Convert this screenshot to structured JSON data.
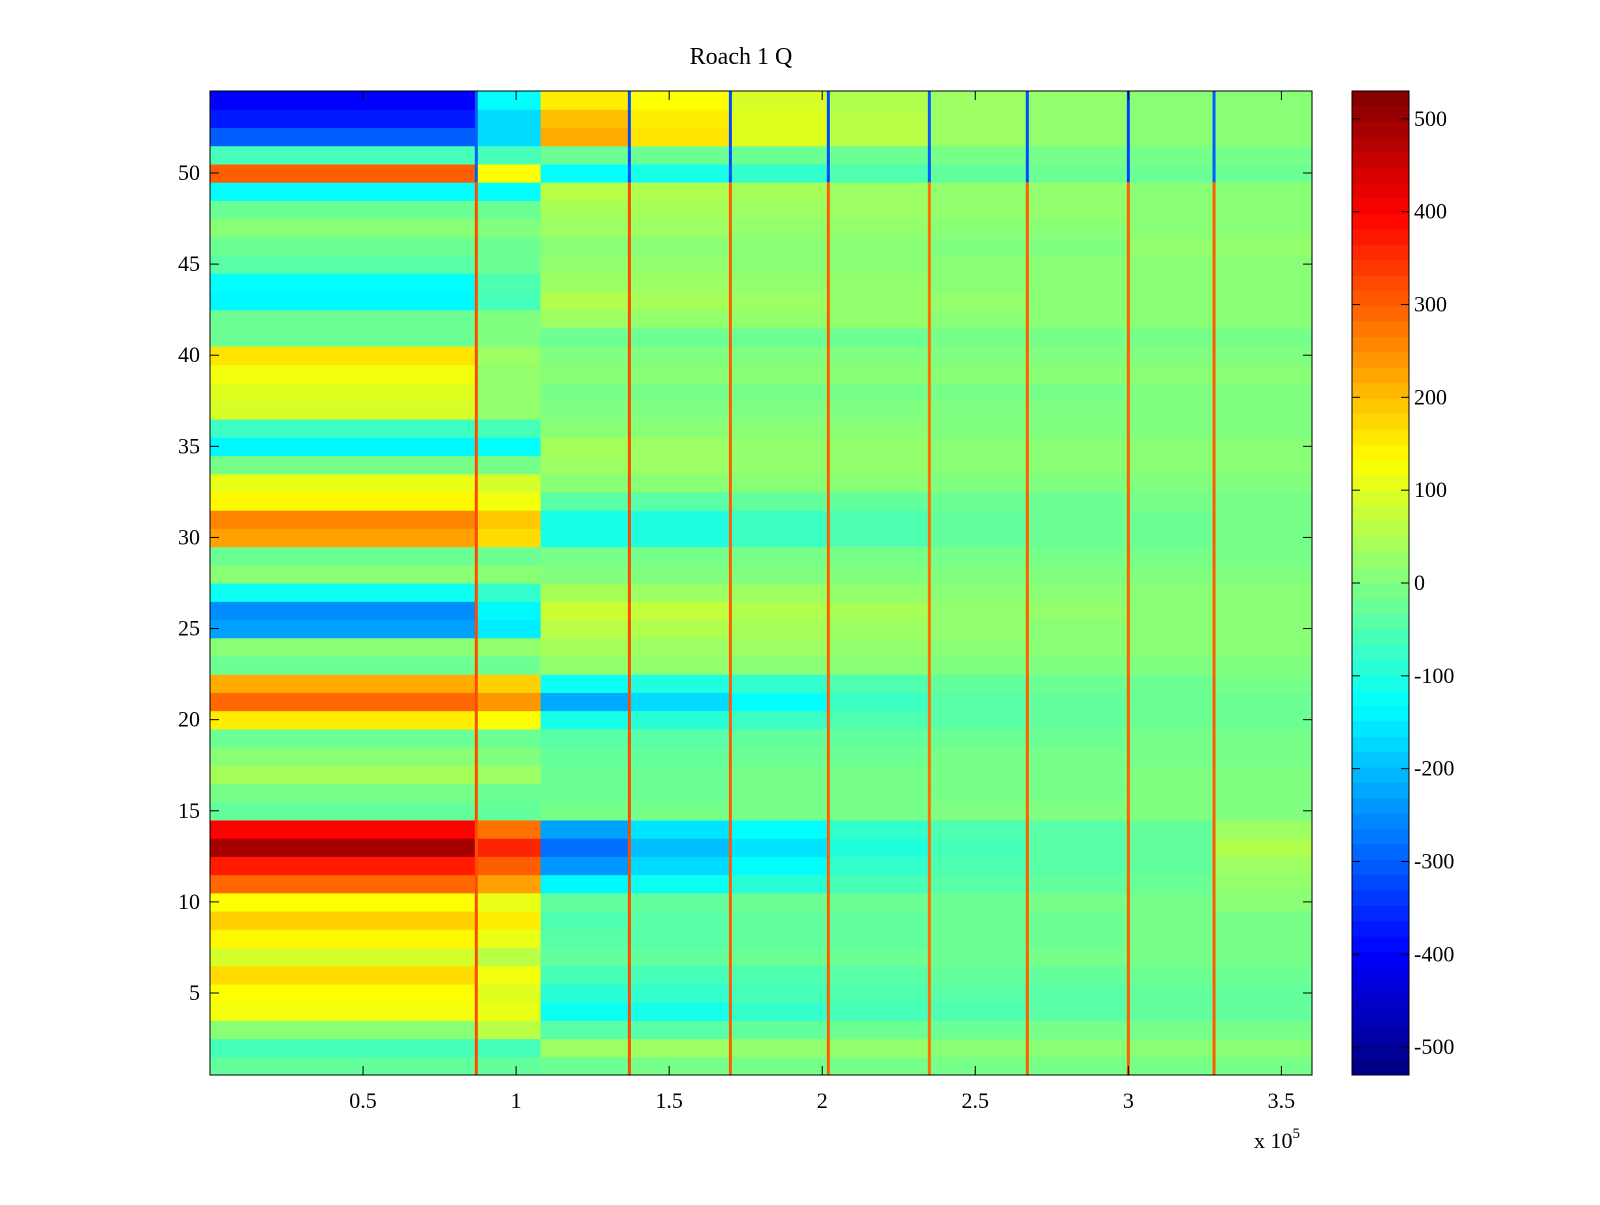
{
  "chart_data": {
    "type": "heatmap",
    "title": "Roach 1 Q",
    "xlabel": "",
    "ylabel": "",
    "x_exponent_label": "x 10",
    "x_exponent_power": "5",
    "xlim": [
      0,
      3.6
    ],
    "ylim": [
      0.5,
      54.5
    ],
    "x_ticks": [
      {
        "value": 0.5,
        "label": "0.5"
      },
      {
        "value": 1,
        "label": "1"
      },
      {
        "value": 1.5,
        "label": "1.5"
      },
      {
        "value": 2,
        "label": "2"
      },
      {
        "value": 2.5,
        "label": "2.5"
      },
      {
        "value": 3,
        "label": "3"
      },
      {
        "value": 3.5,
        "label": "3.5"
      }
    ],
    "y_ticks": [
      {
        "value": 5,
        "label": "5"
      },
      {
        "value": 10,
        "label": "10"
      },
      {
        "value": 15,
        "label": "15"
      },
      {
        "value": 20,
        "label": "20"
      },
      {
        "value": 25,
        "label": "25"
      },
      {
        "value": 30,
        "label": "30"
      },
      {
        "value": 35,
        "label": "35"
      },
      {
        "value": 40,
        "label": "40"
      },
      {
        "value": 45,
        "label": "45"
      },
      {
        "value": 50,
        "label": "50"
      }
    ],
    "colorbar": {
      "colormap": "jet",
      "range": [
        -530,
        530
      ],
      "ticks": [
        {
          "value": 500,
          "label": "500"
        },
        {
          "value": 400,
          "label": "400"
        },
        {
          "value": 300,
          "label": "300"
        },
        {
          "value": 200,
          "label": "200"
        },
        {
          "value": 100,
          "label": "100"
        },
        {
          "value": 0,
          "label": "0"
        },
        {
          "value": -100,
          "label": "-100"
        },
        {
          "value": -200,
          "label": "-200"
        },
        {
          "value": -300,
          "label": "-300"
        },
        {
          "value": -400,
          "label": "-400"
        },
        {
          "value": -500,
          "label": "-500"
        }
      ]
    },
    "x_segments": [
      0,
      0.87,
      1.08,
      1.37,
      1.7,
      2.02,
      2.35,
      2.67,
      3.0,
      3.28,
      3.6
    ],
    "rows": [
      {
        "y": 1,
        "values": [
          -30,
          -30,
          -20,
          -10,
          -10,
          -10,
          -10,
          -10,
          -10,
          -10
        ]
      },
      {
        "y": 2,
        "values": [
          -60,
          -60,
          30,
          30,
          20,
          20,
          10,
          10,
          10,
          10
        ]
      },
      {
        "y": 3,
        "values": [
          10,
          60,
          -40,
          -40,
          -30,
          -20,
          -20,
          -10,
          -10,
          -10
        ]
      },
      {
        "y": 4,
        "values": [
          120,
          110,
          -120,
          -110,
          -80,
          -60,
          -50,
          -40,
          -30,
          -30
        ]
      },
      {
        "y": 5,
        "values": [
          130,
          100,
          -90,
          -80,
          -60,
          -50,
          -40,
          -40,
          -30,
          -30
        ]
      },
      {
        "y": 6,
        "values": [
          170,
          120,
          -60,
          -60,
          -50,
          -40,
          -30,
          -30,
          -20,
          -20
        ]
      },
      {
        "y": 7,
        "values": [
          90,
          60,
          -30,
          -30,
          -20,
          -20,
          -20,
          -10,
          -10,
          -10
        ]
      },
      {
        "y": 8,
        "values": [
          140,
          110,
          -40,
          -40,
          -30,
          -30,
          -20,
          -20,
          -10,
          -10
        ]
      },
      {
        "y": 9,
        "values": [
          180,
          150,
          -50,
          -40,
          -30,
          -30,
          -20,
          -20,
          -10,
          -10
        ]
      },
      {
        "y": 10,
        "values": [
          130,
          110,
          -30,
          -30,
          -20,
          -20,
          -20,
          -10,
          -10,
          10
        ]
      },
      {
        "y": 11,
        "values": [
          290,
          230,
          -140,
          -120,
          -90,
          -60,
          -40,
          -30,
          -20,
          20
        ]
      },
      {
        "y": 12,
        "values": [
          370,
          300,
          -240,
          -170,
          -130,
          -80,
          -50,
          -40,
          -30,
          30
        ]
      },
      {
        "y": 13,
        "values": [
          490,
          360,
          -280,
          -200,
          -160,
          -100,
          -60,
          -40,
          -30,
          50
        ]
      },
      {
        "y": 14,
        "values": [
          400,
          280,
          -230,
          -160,
          -130,
          -80,
          -50,
          -40,
          -30,
          30
        ]
      },
      {
        "y": 15,
        "values": [
          -30,
          -30,
          -10,
          -10,
          -10,
          -10,
          0,
          0,
          0,
          0
        ]
      },
      {
        "y": 16,
        "values": [
          -10,
          -20,
          -20,
          -20,
          -10,
          -10,
          -10,
          -10,
          0,
          0
        ]
      },
      {
        "y": 17,
        "values": [
          40,
          30,
          -20,
          -20,
          -10,
          -10,
          -10,
          -10,
          0,
          0
        ]
      },
      {
        "y": 18,
        "values": [
          10,
          0,
          -30,
          -30,
          -20,
          -20,
          -10,
          -10,
          -10,
          -10
        ]
      },
      {
        "y": 19,
        "values": [
          -20,
          -20,
          -40,
          -40,
          -30,
          -30,
          -20,
          -20,
          -10,
          -10
        ]
      },
      {
        "y": 20,
        "values": [
          150,
          130,
          -110,
          -90,
          -70,
          -50,
          -40,
          -30,
          -20,
          -20
        ]
      },
      {
        "y": 21,
        "values": [
          290,
          240,
          -220,
          -170,
          -130,
          -70,
          -40,
          -30,
          -20,
          -20
        ]
      },
      {
        "y": 22,
        "values": [
          220,
          180,
          -120,
          -100,
          -80,
          -50,
          -30,
          -20,
          -20,
          -10
        ]
      },
      {
        "y": 23,
        "values": [
          -20,
          -20,
          20,
          20,
          10,
          10,
          0,
          0,
          0,
          0
        ]
      },
      {
        "y": 24,
        "values": [
          10,
          20,
          40,
          30,
          30,
          20,
          10,
          10,
          10,
          10
        ]
      },
      {
        "y": 25,
        "values": [
          -230,
          -150,
          60,
          50,
          40,
          30,
          20,
          10,
          10,
          10
        ]
      },
      {
        "y": 26,
        "values": [
          -250,
          -140,
          80,
          70,
          50,
          40,
          20,
          20,
          10,
          10
        ]
      },
      {
        "y": 27,
        "values": [
          -120,
          -80,
          40,
          30,
          30,
          20,
          10,
          10,
          10,
          10
        ]
      },
      {
        "y": 28,
        "values": [
          10,
          10,
          0,
          0,
          0,
          0,
          0,
          0,
          0,
          0
        ]
      },
      {
        "y": 29,
        "values": [
          -20,
          -20,
          -10,
          -10,
          -10,
          -10,
          -10,
          -10,
          -10,
          -10
        ]
      },
      {
        "y": 30,
        "values": [
          230,
          170,
          -110,
          -100,
          -70,
          -50,
          -30,
          -20,
          -20,
          -10
        ]
      },
      {
        "y": 31,
        "values": [
          260,
          190,
          -110,
          -100,
          -70,
          -50,
          -30,
          -20,
          -20,
          -10
        ]
      },
      {
        "y": 32,
        "values": [
          140,
          120,
          -40,
          -40,
          -30,
          -30,
          -20,
          -20,
          -10,
          -10
        ]
      },
      {
        "y": 33,
        "values": [
          110,
          90,
          10,
          10,
          10,
          10,
          0,
          0,
          0,
          0
        ]
      },
      {
        "y": 34,
        "values": [
          -10,
          -10,
          30,
          30,
          20,
          20,
          10,
          10,
          10,
          10
        ]
      },
      {
        "y": 35,
        "values": [
          -140,
          -130,
          40,
          30,
          20,
          20,
          10,
          10,
          10,
          10
        ]
      },
      {
        "y": 36,
        "values": [
          -70,
          -60,
          10,
          10,
          10,
          10,
          0,
          0,
          0,
          0
        ]
      },
      {
        "y": 37,
        "values": [
          90,
          20,
          0,
          0,
          0,
          0,
          0,
          0,
          0,
          0
        ]
      },
      {
        "y": 38,
        "values": [
          100,
          20,
          -10,
          -10,
          -10,
          -10,
          -10,
          -10,
          0,
          0
        ]
      },
      {
        "y": 39,
        "values": [
          120,
          20,
          10,
          10,
          10,
          10,
          10,
          10,
          10,
          10
        ]
      },
      {
        "y": 40,
        "values": [
          160,
          30,
          0,
          0,
          0,
          0,
          0,
          0,
          0,
          0
        ]
      },
      {
        "y": 41,
        "values": [
          -20,
          0,
          -20,
          -20,
          -20,
          -20,
          -10,
          -10,
          -10,
          -10
        ]
      },
      {
        "y": 42,
        "values": [
          -20,
          0,
          30,
          20,
          20,
          20,
          10,
          10,
          10,
          10
        ]
      },
      {
        "y": 43,
        "values": [
          -140,
          -60,
          50,
          40,
          30,
          20,
          20,
          10,
          10,
          10
        ]
      },
      {
        "y": 44,
        "values": [
          -130,
          -50,
          30,
          30,
          20,
          20,
          10,
          10,
          10,
          10
        ]
      },
      {
        "y": 45,
        "values": [
          -40,
          -20,
          20,
          20,
          10,
          10,
          10,
          10,
          10,
          10
        ]
      },
      {
        "y": 46,
        "values": [
          -20,
          -20,
          10,
          10,
          10,
          10,
          0,
          0,
          20,
          20
        ]
      },
      {
        "y": 47,
        "values": [
          10,
          0,
          30,
          30,
          20,
          20,
          10,
          10,
          10,
          10
        ]
      },
      {
        "y": 48,
        "values": [
          -20,
          -20,
          40,
          40,
          30,
          30,
          20,
          20,
          10,
          10
        ]
      },
      {
        "y": 49,
        "values": [
          -130,
          -130,
          60,
          50,
          40,
          30,
          20,
          20,
          10,
          10
        ]
      },
      {
        "y": 50,
        "values": [
          300,
          130,
          -130,
          -110,
          -80,
          -50,
          -30,
          -20,
          -20,
          -20
        ]
      },
      {
        "y": 51,
        "values": [
          -60,
          -60,
          -20,
          -20,
          -20,
          -20,
          -10,
          -10,
          -10,
          -10
        ]
      },
      {
        "y": 52,
        "values": [
          -300,
          -170,
          220,
          160,
          100,
          60,
          30,
          20,
          10,
          10
        ]
      },
      {
        "y": 53,
        "values": [
          -370,
          -170,
          200,
          150,
          100,
          60,
          30,
          20,
          10,
          10
        ]
      },
      {
        "y": 54,
        "values": [
          -400,
          -130,
          150,
          130,
          90,
          50,
          30,
          20,
          10,
          10
        ]
      }
    ],
    "vertical_streaks": [
      {
        "x": 0.87,
        "rows": [
          1,
          49
        ],
        "value": 320
      },
      {
        "x": 0.87,
        "rows": [
          50,
          54
        ],
        "value": -300
      },
      {
        "x": 1.37,
        "rows": [
          1,
          49
        ],
        "value": 320
      },
      {
        "x": 1.37,
        "rows": [
          50,
          54
        ],
        "value": -320
      },
      {
        "x": 1.7,
        "rows": [
          1,
          49
        ],
        "value": 300
      },
      {
        "x": 1.7,
        "rows": [
          50,
          54
        ],
        "value": -320
      },
      {
        "x": 2.02,
        "rows": [
          1,
          49
        ],
        "value": 300
      },
      {
        "x": 2.02,
        "rows": [
          50,
          54
        ],
        "value": -320
      },
      {
        "x": 2.35,
        "rows": [
          1,
          49
        ],
        "value": 280
      },
      {
        "x": 2.35,
        "rows": [
          50,
          54
        ],
        "value": -300
      },
      {
        "x": 2.67,
        "rows": [
          1,
          49
        ],
        "value": 300
      },
      {
        "x": 2.67,
        "rows": [
          50,
          54
        ],
        "value": -320
      },
      {
        "x": 3.0,
        "rows": [
          1,
          49
        ],
        "value": 300
      },
      {
        "x": 3.0,
        "rows": [
          50,
          54
        ],
        "value": -330
      },
      {
        "x": 3.28,
        "rows": [
          1,
          49
        ],
        "value": 300
      },
      {
        "x": 3.28,
        "rows": [
          50,
          54
        ],
        "value": -300
      }
    ]
  }
}
